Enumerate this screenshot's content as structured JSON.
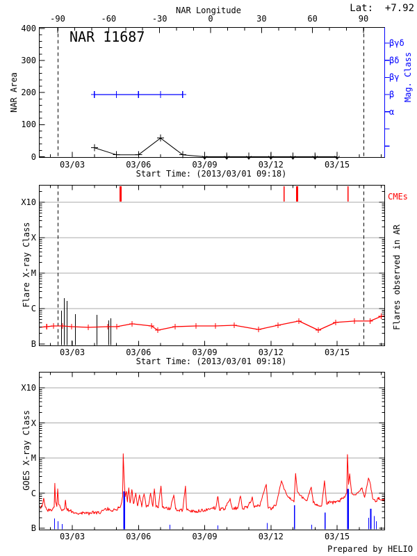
{
  "labels": {
    "lat": "Lat:  +7.92",
    "title": "NAR 11687",
    "top_axis": "NAR Longitude",
    "p1_ylabel": "NAR Area",
    "p2_ylabel": "Flare X-ray Class",
    "p3_ylabel": "GOES X-ray Class",
    "mag_class": "Mag. Class",
    "flares_right": "Flares observed in AR",
    "cmes": "CMEs",
    "start_time": "Start Time: (2013/03/01 09:18)",
    "credit": "Prepared by HELIO"
  },
  "colors": {
    "red": "#ff0000",
    "blue": "#0000ff",
    "black": "#000000",
    "grid": "#a9a9a9"
  },
  "time_axis": {
    "start": "2013/03/01 09:18",
    "tick_labels": [
      "03/03",
      "03/06",
      "03/09",
      "03/12",
      "03/15"
    ],
    "tick_days": [
      3,
      6,
      9,
      12,
      15
    ],
    "minor_day_step": 1,
    "range_days": [
      1.49,
      17.14
    ]
  },
  "chart_data": [
    {
      "panel": "nar_area",
      "type": "line",
      "title": "NAR 11687",
      "lat_annotation": "+7.92",
      "ylabel": "NAR Area",
      "ylim": [
        0,
        400
      ],
      "yticks": [
        0,
        100,
        200,
        300,
        400
      ],
      "ytick_labels": [
        "0",
        "100",
        "200",
        "300",
        "400"
      ],
      "ytick_minor_step": 20,
      "top_axis": {
        "label": "NAR Longitude",
        "tick_labels": [
          "-90",
          "-60",
          "-30",
          "0",
          "30",
          "60",
          "90"
        ],
        "ticks_deg": [
          -90,
          -60,
          -30,
          0,
          30,
          60,
          90
        ],
        "minor_step_deg": 10
      },
      "right_axis": {
        "label": "Mag. Class",
        "tick_labels": [
          "βγδ",
          "βδ",
          "βγ",
          "β",
          "α"
        ],
        "num_ticks": 7
      },
      "area_series": {
        "days": [
          4,
          5,
          6,
          7,
          8
        ],
        "values": [
          28,
          6,
          6,
          58,
          6
        ]
      },
      "mag_series": {
        "days": [
          4,
          5,
          6,
          7,
          8
        ],
        "class_label": "β",
        "class_index_from_top": 3
      },
      "upper_limit_days": [
        9,
        10,
        11,
        12,
        13,
        14,
        15
      ],
      "limb_crossing_days": [
        2.34,
        16.2
      ]
    },
    {
      "panel": "flare_xray",
      "type": "line",
      "ylabel": "Flare X-ray Class",
      "right_label": "Flares observed in AR",
      "cme_label": "CMEs",
      "ytick_labels": [
        "B",
        "C",
        "M",
        "X",
        "X10"
      ],
      "level_note": "levels are decades above B (0=B,1=C,2=M,3=X,4=X10)",
      "cmes": [
        [
          5.17,
          3
        ],
        [
          12.57,
          1.5
        ],
        [
          13.17,
          3
        ],
        [
          15.47,
          1.5
        ]
      ],
      "flares": [
        [
          2.5,
          0.94
        ],
        [
          2.62,
          1.29
        ],
        [
          2.75,
          1.22
        ],
        [
          2.97,
          0.1
        ],
        [
          3.13,
          0.84
        ],
        [
          4.1,
          0.82
        ],
        [
          4.64,
          0.67
        ],
        [
          4.73,
          0.73
        ]
      ],
      "background_curve": [
        [
          1.49,
          0.47
        ],
        [
          1.84,
          0.49
        ],
        [
          2.15,
          0.51
        ],
        [
          2.56,
          0.51
        ],
        [
          2.97,
          0.49
        ],
        [
          3.72,
          0.47
        ],
        [
          4.61,
          0.49
        ],
        [
          5.02,
          0.49
        ],
        [
          5.71,
          0.57
        ],
        [
          6.59,
          0.51
        ],
        [
          6.87,
          0.39
        ],
        [
          7.66,
          0.49
        ],
        [
          8.61,
          0.51
        ],
        [
          9.49,
          0.51
        ],
        [
          10.34,
          0.53
        ],
        [
          11.44,
          0.41
        ],
        [
          12.32,
          0.53
        ],
        [
          13.27,
          0.65
        ],
        [
          14.15,
          0.39
        ],
        [
          14.94,
          0.61
        ],
        [
          15.79,
          0.65
        ],
        [
          16.5,
          0.65
        ],
        [
          17.0,
          0.78
        ],
        [
          17.14,
          0.79
        ]
      ],
      "limb_crossing_days": [
        2.34,
        16.2
      ]
    },
    {
      "panel": "goes_xray",
      "type": "line",
      "ylabel": "GOES X-ray Class",
      "ytick_labels": [
        "B",
        "C",
        "M",
        "X",
        "X10"
      ],
      "flux_anchors": [
        [
          1.5,
          0.7
        ],
        [
          1.57,
          0.55
        ],
        [
          1.63,
          0.62
        ],
        [
          1.7,
          0.85
        ],
        [
          1.78,
          0.6
        ],
        [
          1.9,
          0.5
        ],
        [
          2.0,
          0.52
        ],
        [
          2.1,
          0.55
        ],
        [
          2.18,
          0.6
        ],
        [
          2.21,
          1.28
        ],
        [
          2.24,
          0.75
        ],
        [
          2.3,
          0.62
        ],
        [
          2.34,
          1.12
        ],
        [
          2.38,
          0.68
        ],
        [
          2.45,
          0.6
        ],
        [
          2.55,
          0.52
        ],
        [
          2.65,
          0.55
        ],
        [
          2.69,
          0.8
        ],
        [
          2.74,
          0.55
        ],
        [
          2.85,
          0.5
        ],
        [
          3.0,
          0.48
        ],
        [
          3.2,
          0.44
        ],
        [
          3.4,
          0.42
        ],
        [
          3.6,
          0.44
        ],
        [
          3.8,
          0.42
        ],
        [
          4.0,
          0.45
        ],
        [
          4.2,
          0.43
        ],
        [
          4.4,
          0.5
        ],
        [
          4.6,
          0.55
        ],
        [
          4.8,
          0.5
        ],
        [
          4.95,
          0.52
        ],
        [
          5.1,
          0.58
        ],
        [
          5.2,
          0.65
        ],
        [
          5.28,
          0.9
        ],
        [
          5.31,
          2.12
        ],
        [
          5.35,
          1.4
        ],
        [
          5.4,
          0.9
        ],
        [
          5.45,
          1.05
        ],
        [
          5.5,
          0.75
        ],
        [
          5.56,
          1.15
        ],
        [
          5.62,
          0.72
        ],
        [
          5.7,
          1.1
        ],
        [
          5.78,
          0.7
        ],
        [
          5.88,
          1.0
        ],
        [
          5.95,
          0.65
        ],
        [
          6.05,
          0.95
        ],
        [
          6.15,
          0.62
        ],
        [
          6.25,
          0.98
        ],
        [
          6.35,
          0.6
        ],
        [
          6.45,
          0.65
        ],
        [
          6.55,
          1.0
        ],
        [
          6.65,
          0.62
        ],
        [
          6.72,
          1.12
        ],
        [
          6.8,
          0.6
        ],
        [
          6.9,
          0.58
        ],
        [
          7.02,
          1.2
        ],
        [
          7.08,
          0.62
        ],
        [
          7.25,
          0.58
        ],
        [
          7.45,
          0.55
        ],
        [
          7.6,
          0.95
        ],
        [
          7.68,
          0.55
        ],
        [
          7.85,
          0.5
        ],
        [
          8.0,
          0.52
        ],
        [
          8.13,
          1.2
        ],
        [
          8.18,
          0.55
        ],
        [
          8.35,
          0.5
        ],
        [
          8.55,
          0.48
        ],
        [
          8.75,
          0.5
        ],
        [
          9.0,
          0.52
        ],
        [
          9.25,
          0.55
        ],
        [
          9.5,
          0.58
        ],
        [
          9.6,
          0.9
        ],
        [
          9.68,
          0.53
        ],
        [
          9.9,
          0.55
        ],
        [
          10.15,
          0.85
        ],
        [
          10.25,
          0.55
        ],
        [
          10.5,
          0.58
        ],
        [
          10.62,
          0.9
        ],
        [
          10.72,
          0.55
        ],
        [
          10.95,
          0.6
        ],
        [
          11.15,
          0.88
        ],
        [
          11.25,
          0.6
        ],
        [
          11.5,
          0.65
        ],
        [
          11.79,
          1.25
        ],
        [
          11.87,
          0.62
        ],
        [
          12.05,
          0.55
        ],
        [
          12.25,
          0.7
        ],
        [
          12.48,
          1.35
        ],
        [
          12.58,
          1.15
        ],
        [
          12.72,
          0.95
        ],
        [
          12.9,
          0.82
        ],
        [
          13.05,
          0.78
        ],
        [
          13.12,
          1.56
        ],
        [
          13.2,
          1.05
        ],
        [
          13.4,
          0.88
        ],
        [
          13.62,
          0.78
        ],
        [
          13.83,
          1.17
        ],
        [
          13.92,
          0.72
        ],
        [
          14.1,
          0.68
        ],
        [
          14.3,
          0.64
        ],
        [
          14.43,
          1.35
        ],
        [
          14.52,
          0.7
        ],
        [
          14.72,
          0.74
        ],
        [
          14.92,
          0.72
        ],
        [
          15.1,
          0.78
        ],
        [
          15.3,
          0.85
        ],
        [
          15.44,
          1.0
        ],
        [
          15.47,
          2.1
        ],
        [
          15.52,
          1.25
        ],
        [
          15.57,
          1.55
        ],
        [
          15.66,
          1.0
        ],
        [
          15.82,
          0.95
        ],
        [
          16.0,
          1.05
        ],
        [
          16.12,
          1.15
        ],
        [
          16.25,
          0.88
        ],
        [
          16.42,
          1.43
        ],
        [
          16.5,
          1.28
        ],
        [
          16.62,
          0.84
        ],
        [
          16.75,
          0.75
        ],
        [
          16.9,
          0.88
        ],
        [
          17.05,
          0.8
        ],
        [
          17.14,
          0.82
        ]
      ],
      "events": [
        [
          2.18,
          0.28,
          1
        ],
        [
          2.34,
          0.2,
          1
        ],
        [
          2.53,
          0.12,
          1
        ],
        [
          5.33,
          1.05,
          2.5
        ],
        [
          7.41,
          0.1,
          1
        ],
        [
          9.58,
          0.08,
          1
        ],
        [
          11.82,
          0.15,
          1
        ],
        [
          13.05,
          0.65,
          1.5
        ],
        [
          13.83,
          0.1,
          1
        ],
        [
          14.43,
          0.45,
          1.5
        ],
        [
          15.47,
          1.12,
          2.5
        ],
        [
          16.42,
          0.3,
          1
        ],
        [
          16.51,
          0.55,
          2
        ],
        [
          16.67,
          0.35,
          1
        ],
        [
          16.76,
          0.2,
          1
        ]
      ],
      "credit": "Prepared by HELIO"
    }
  ]
}
